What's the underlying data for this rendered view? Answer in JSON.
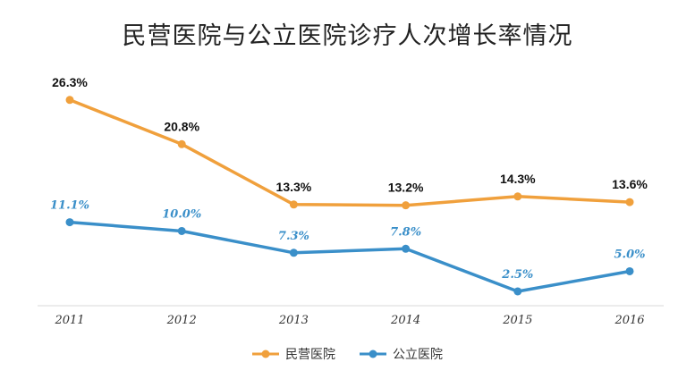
{
  "chart_data": {
    "type": "line",
    "title": "民营医院与公立医院诊疗人次增长率情况",
    "categories": [
      "2011",
      "2012",
      "2013",
      "2014",
      "2015",
      "2016"
    ],
    "series": [
      {
        "name": "民营医院",
        "color": "#f0a03c",
        "values": [
          26.3,
          20.8,
          13.3,
          13.2,
          14.3,
          13.6
        ],
        "labels": [
          "26.3%",
          "20.8%",
          "13.3%",
          "13.2%",
          "14.3%",
          "13.6%"
        ]
      },
      {
        "name": "公立医院",
        "color": "#3a8fc9",
        "values": [
          11.1,
          10.0,
          7.3,
          7.8,
          2.5,
          5.0
        ],
        "labels": [
          "11.1%",
          "10.0%",
          "7.3%",
          "7.8%",
          "2.5%",
          "5.0%"
        ]
      }
    ],
    "legend": "bottom-center",
    "grid": false
  }
}
